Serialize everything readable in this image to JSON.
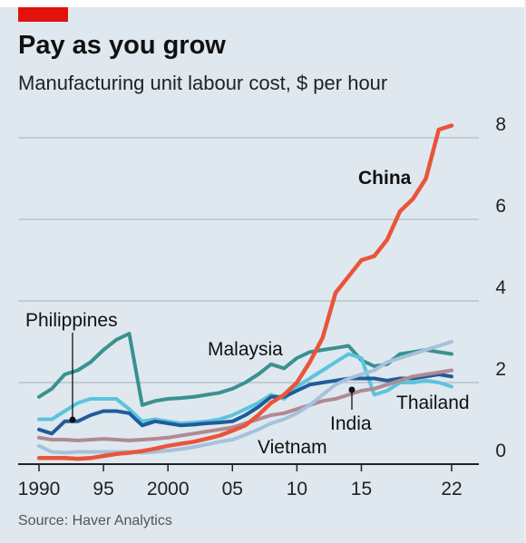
{
  "header": {
    "title": "Pay as you grow",
    "subtitle": "Manufacturing unit labour cost, $ per hour",
    "accent_color": "#e3120b"
  },
  "footer": {
    "source": "Source: Haver Analytics"
  },
  "chart_data": {
    "type": "line",
    "title": "Pay as you grow",
    "subtitle": "Manufacturing unit labour cost, $ per hour",
    "xlabel": "",
    "ylabel": "",
    "xlim": [
      1990,
      2022
    ],
    "ylim": [
      0,
      8
    ],
    "x_ticks": [
      1990,
      1995,
      2000,
      2005,
      2010,
      2015,
      2022
    ],
    "x_tick_labels": [
      "1990",
      "95",
      "2000",
      "05",
      "10",
      "15",
      "22"
    ],
    "y_ticks": [
      0,
      2,
      4,
      6,
      8
    ],
    "y_tick_labels": [
      "0",
      "2",
      "4",
      "6",
      "8"
    ],
    "grid": "horizontal",
    "legend": "none (direct labels)",
    "series": [
      {
        "name": "Malaysia",
        "color": "#3a9190",
        "x": [
          1990,
          1991,
          1992,
          1993,
          1994,
          1995,
          1996,
          1997,
          1998,
          1999,
          2000,
          2001,
          2002,
          2003,
          2004,
          2005,
          2006,
          2007,
          2008,
          2009,
          2010,
          2011,
          2012,
          2013,
          2014,
          2015,
          2016,
          2017,
          2018,
          2019,
          2020,
          2021,
          2022
        ],
        "y": [
          1.65,
          1.85,
          2.2,
          2.3,
          2.5,
          2.8,
          3.05,
          3.2,
          1.45,
          1.55,
          1.6,
          1.62,
          1.65,
          1.7,
          1.75,
          1.85,
          2.0,
          2.2,
          2.45,
          2.35,
          2.6,
          2.75,
          2.8,
          2.85,
          2.9,
          2.55,
          2.4,
          2.45,
          2.7,
          2.75,
          2.8,
          2.75,
          2.7
        ]
      },
      {
        "name": "",
        "color": "#5bc4dd",
        "x": [
          1990,
          1991,
          1992,
          1993,
          1994,
          1995,
          1996,
          1997,
          1998,
          1999,
          2000,
          2001,
          2002,
          2003,
          2004,
          2005,
          2006,
          2007,
          2008,
          2009,
          2010,
          2011,
          2012,
          2013,
          2014,
          2015,
          2016,
          2017,
          2018,
          2019,
          2020,
          2021,
          2022
        ],
        "y": [
          1.1,
          1.1,
          1.3,
          1.5,
          1.6,
          1.6,
          1.6,
          1.35,
          1.05,
          1.1,
          1.05,
          1.0,
          1.02,
          1.05,
          1.1,
          1.2,
          1.35,
          1.5,
          1.7,
          1.6,
          1.9,
          2.1,
          2.3,
          2.5,
          2.7,
          2.6,
          1.7,
          1.8,
          2.0,
          2.0,
          2.05,
          2.0,
          1.9
        ]
      },
      {
        "name": "Philippines",
        "color": "#1f5c99",
        "x": [
          1990,
          1991,
          1992,
          1993,
          1994,
          1995,
          1996,
          1997,
          1998,
          1999,
          2000,
          2001,
          2002,
          2003,
          2004,
          2005,
          2006,
          2007,
          2008,
          2009,
          2010,
          2011,
          2012,
          2013,
          2014,
          2015,
          2016,
          2017,
          2018,
          2019,
          2020,
          2021,
          2022
        ],
        "y": [
          0.85,
          0.75,
          1.05,
          1.05,
          1.2,
          1.3,
          1.3,
          1.25,
          0.95,
          1.05,
          1.0,
          0.95,
          0.97,
          1.0,
          1.02,
          1.05,
          1.2,
          1.4,
          1.65,
          1.65,
          1.8,
          1.95,
          2.0,
          2.05,
          2.1,
          2.1,
          2.1,
          2.05,
          2.1,
          2.1,
          2.15,
          2.2,
          2.15
        ]
      },
      {
        "name": "",
        "color": "#b08a93",
        "x": [
          1990,
          1991,
          1992,
          1993,
          1994,
          1995,
          1996,
          1997,
          1998,
          1999,
          2000,
          2001,
          2002,
          2003,
          2004,
          2005,
          2006,
          2007,
          2008,
          2009,
          2010,
          2011,
          2012,
          2013,
          2014,
          2015,
          2016,
          2017,
          2018,
          2019,
          2020,
          2021,
          2022
        ],
        "y": [
          0.65,
          0.6,
          0.6,
          0.58,
          0.6,
          0.62,
          0.6,
          0.58,
          0.6,
          0.62,
          0.65,
          0.7,
          0.75,
          0.8,
          0.85,
          0.9,
          1.0,
          1.1,
          1.2,
          1.25,
          1.35,
          1.45,
          1.55,
          1.6,
          1.7,
          1.8,
          1.85,
          1.95,
          2.05,
          2.15,
          2.2,
          2.25,
          2.3
        ]
      },
      {
        "name": "Vietnam",
        "color": "#a6c1dc",
        "x": [
          1990,
          1991,
          1992,
          1993,
          1994,
          1995,
          1996,
          1997,
          1998,
          1999,
          2000,
          2001,
          2002,
          2003,
          2004,
          2005,
          2006,
          2007,
          2008,
          2009,
          2010,
          2011,
          2012,
          2013,
          2014,
          2015,
          2016,
          2017,
          2018,
          2019,
          2020,
          2021,
          2022
        ],
        "y": [
          0.45,
          0.3,
          0.28,
          0.3,
          0.3,
          0.3,
          0.3,
          0.3,
          0.28,
          0.3,
          0.33,
          0.37,
          0.42,
          0.48,
          0.55,
          0.6,
          0.72,
          0.85,
          1.0,
          1.1,
          1.25,
          1.45,
          1.7,
          1.95,
          2.1,
          2.2,
          2.3,
          2.5,
          2.6,
          2.7,
          2.8,
          2.9,
          3.0
        ]
      },
      {
        "name": "China",
        "color": "#e9553a",
        "x": [
          1990,
          1991,
          1992,
          1993,
          1994,
          1995,
          1996,
          1997,
          1998,
          1999,
          2000,
          2001,
          2002,
          2003,
          2004,
          2005,
          2006,
          2007,
          2008,
          2009,
          2010,
          2011,
          2012,
          2013,
          2014,
          2015,
          2016,
          2017,
          2018,
          2019,
          2020,
          2021,
          2022
        ],
        "y": [
          0.15,
          0.15,
          0.15,
          0.13,
          0.15,
          0.2,
          0.25,
          0.28,
          0.32,
          0.38,
          0.45,
          0.5,
          0.55,
          0.62,
          0.7,
          0.82,
          0.95,
          1.2,
          1.5,
          1.7,
          2.0,
          2.5,
          3.1,
          4.2,
          4.6,
          5.0,
          5.1,
          5.5,
          6.2,
          6.5,
          7.0,
          8.2,
          8.3
        ]
      }
    ],
    "annotations": [
      {
        "text": "China"
      },
      {
        "text": "Malaysia"
      },
      {
        "text": "Philippines"
      },
      {
        "text": "Thailand"
      },
      {
        "text": "India"
      },
      {
        "text": "Vietnam"
      }
    ]
  }
}
